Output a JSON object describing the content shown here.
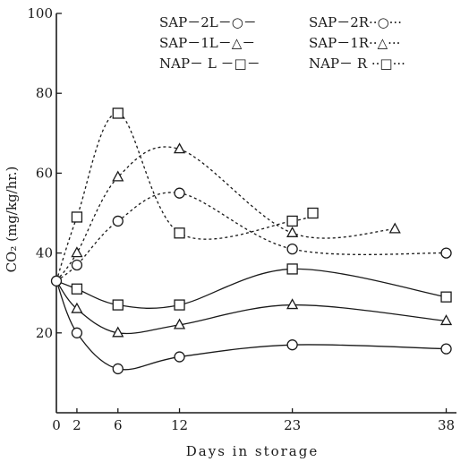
{
  "chart_data": {
    "type": "line",
    "xlabel": "Days in storage",
    "ylabel": "CO₂ (mg/kg/hr.)",
    "xlim": [
      0,
      39
    ],
    "ylim": [
      0,
      100
    ],
    "x_ticks": [
      "0",
      "2",
      "6",
      "12",
      "23",
      "38"
    ],
    "x_tick_values": [
      0,
      2,
      6,
      12,
      23,
      38
    ],
    "y_ticks": [
      "20",
      "40",
      "60",
      "80",
      "100"
    ],
    "y_tick_values": [
      20,
      40,
      60,
      80,
      100
    ],
    "legend_placement": "top-right",
    "series": [
      {
        "name": "SAP－2L",
        "legend_label": "SAP－2L－○－",
        "marker": "circle",
        "line": "solid",
        "x": [
          0,
          2,
          6,
          12,
          23,
          38
        ],
        "y": [
          33,
          20,
          11,
          14,
          17,
          16
        ]
      },
      {
        "name": "SAP－1L",
        "legend_label": "SAP－1L－△－",
        "marker": "triangle",
        "line": "solid",
        "x": [
          0,
          2,
          6,
          12,
          23,
          38
        ],
        "y": [
          33,
          26,
          20,
          22,
          27,
          23
        ]
      },
      {
        "name": "NAP－L",
        "legend_label": "NAP－ L －□－",
        "marker": "square",
        "line": "solid",
        "x": [
          0,
          2,
          6,
          12,
          23,
          38
        ],
        "y": [
          33,
          31,
          27,
          27,
          36,
          29
        ]
      },
      {
        "name": "SAP－2R",
        "legend_label": "SAP－2R··○···",
        "marker": "circle",
        "line": "dashed",
        "x": [
          0,
          2,
          6,
          12,
          23,
          38
        ],
        "y": [
          33,
          37,
          48,
          55,
          41,
          40
        ]
      },
      {
        "name": "SAP－1R",
        "legend_label": "SAP－1R··△···",
        "marker": "triangle",
        "line": "dashed",
        "x": [
          0,
          2,
          6,
          12,
          23,
          33
        ],
        "y": [
          33,
          40,
          59,
          66,
          45,
          46
        ]
      },
      {
        "name": "NAP－R",
        "legend_label": "NAP－ R ··□···",
        "marker": "square",
        "line": "dashed",
        "x": [
          0,
          2,
          6,
          12,
          23,
          25
        ],
        "y": [
          33,
          49,
          75,
          45,
          48,
          50
        ]
      }
    ]
  }
}
